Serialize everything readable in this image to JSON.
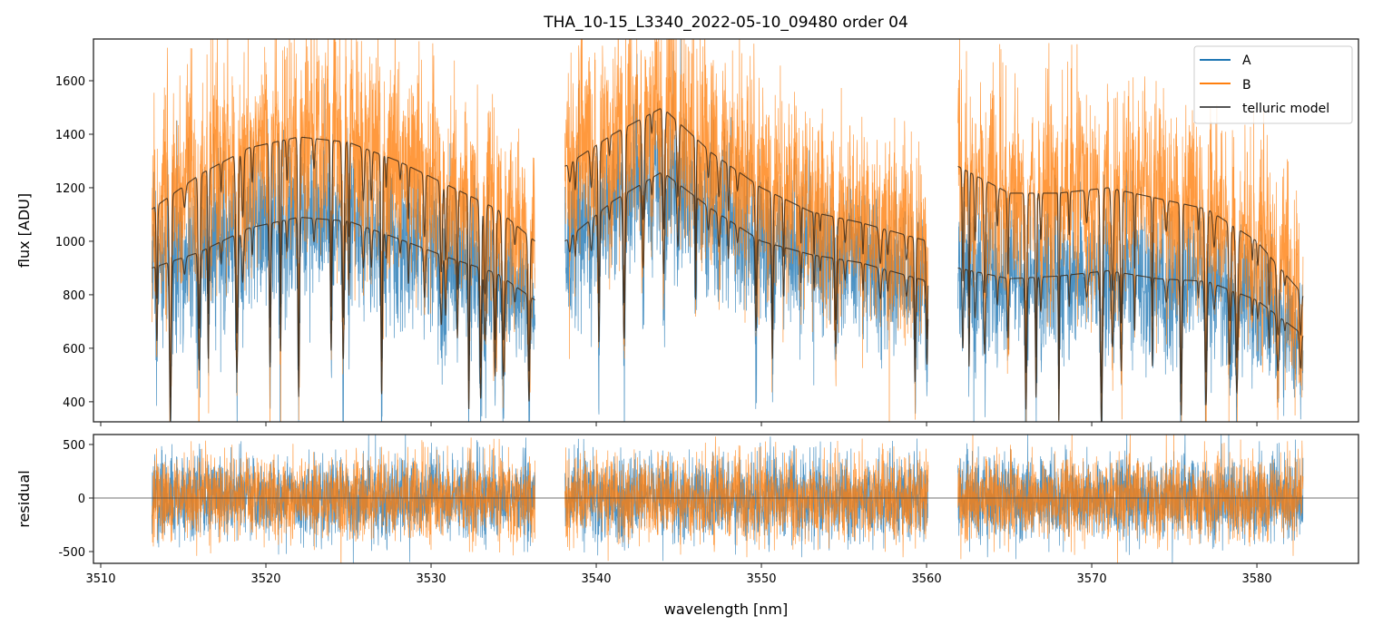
{
  "chart_data": {
    "type": "line",
    "title": "THA_10-15_L3340_2022-05-10_09480  order 04",
    "xlabel": "wavelength [nm]",
    "xlim": [
      3509.56,
      3586.15
    ],
    "xticks": [
      3510,
      3520,
      3530,
      3540,
      3550,
      3560,
      3570,
      3580
    ],
    "panels": [
      {
        "name": "flux",
        "ylabel": "flux [ADU]",
        "ylim": [
          325,
          1756
        ],
        "yticks": [
          400,
          600,
          800,
          1000,
          1200,
          1400,
          1600
        ]
      },
      {
        "name": "residual",
        "ylabel": "residual",
        "ylim": [
          -610,
          593
        ],
        "yticks": [
          -500,
          0,
          500
        ]
      }
    ],
    "segments": [
      [
        3513.1,
        3536.3
      ],
      [
        3538.1,
        3560.1
      ],
      [
        3561.9,
        3582.8
      ]
    ],
    "legend": {
      "placement": "top-right",
      "entries": [
        "A",
        "B",
        "telluric model"
      ]
    },
    "series": [
      {
        "name": "A",
        "color": "#1f77b4",
        "noise_sigma": 150,
        "residual_sigma": 190,
        "continuum": [
          [
            3513.1,
            900
          ],
          [
            3516,
            960
          ],
          [
            3519,
            1050
          ],
          [
            3522,
            1090
          ],
          [
            3525,
            1075
          ],
          [
            3528,
            1010
          ],
          [
            3531,
            940
          ],
          [
            3534,
            880
          ],
          [
            3536.3,
            780
          ],
          [
            3538.1,
            1000
          ],
          [
            3541,
            1150
          ],
          [
            3544,
            1260
          ],
          [
            3547,
            1120
          ],
          [
            3550,
            1000
          ],
          [
            3553,
            950
          ],
          [
            3556,
            920
          ],
          [
            3560.1,
            850
          ],
          [
            3561.9,
            900
          ],
          [
            3565,
            860
          ],
          [
            3568,
            870
          ],
          [
            3571,
            890
          ],
          [
            3574,
            860
          ],
          [
            3577,
            850
          ],
          [
            3580,
            780
          ],
          [
            3582.8,
            650
          ]
        ]
      },
      {
        "name": "B",
        "color": "#ff7f0e",
        "noise_sigma": 190,
        "residual_sigma": 190,
        "continuum": [
          [
            3513.1,
            1120
          ],
          [
            3516,
            1250
          ],
          [
            3519,
            1350
          ],
          [
            3522,
            1390
          ],
          [
            3525,
            1370
          ],
          [
            3528,
            1300
          ],
          [
            3531,
            1210
          ],
          [
            3534,
            1120
          ],
          [
            3536.3,
            1000
          ],
          [
            3538.1,
            1280
          ],
          [
            3541,
            1400
          ],
          [
            3544,
            1500
          ],
          [
            3547,
            1330
          ],
          [
            3550,
            1200
          ],
          [
            3553,
            1110
          ],
          [
            3556,
            1070
          ],
          [
            3560.1,
            1000
          ],
          [
            3561.9,
            1280
          ],
          [
            3565,
            1180
          ],
          [
            3568,
            1180
          ],
          [
            3571,
            1200
          ],
          [
            3574,
            1160
          ],
          [
            3577,
            1120
          ],
          [
            3580,
            1000
          ],
          [
            3582.8,
            800
          ]
        ]
      },
      {
        "name": "telluric model",
        "color": "#3a2a1a"
      }
    ]
  }
}
